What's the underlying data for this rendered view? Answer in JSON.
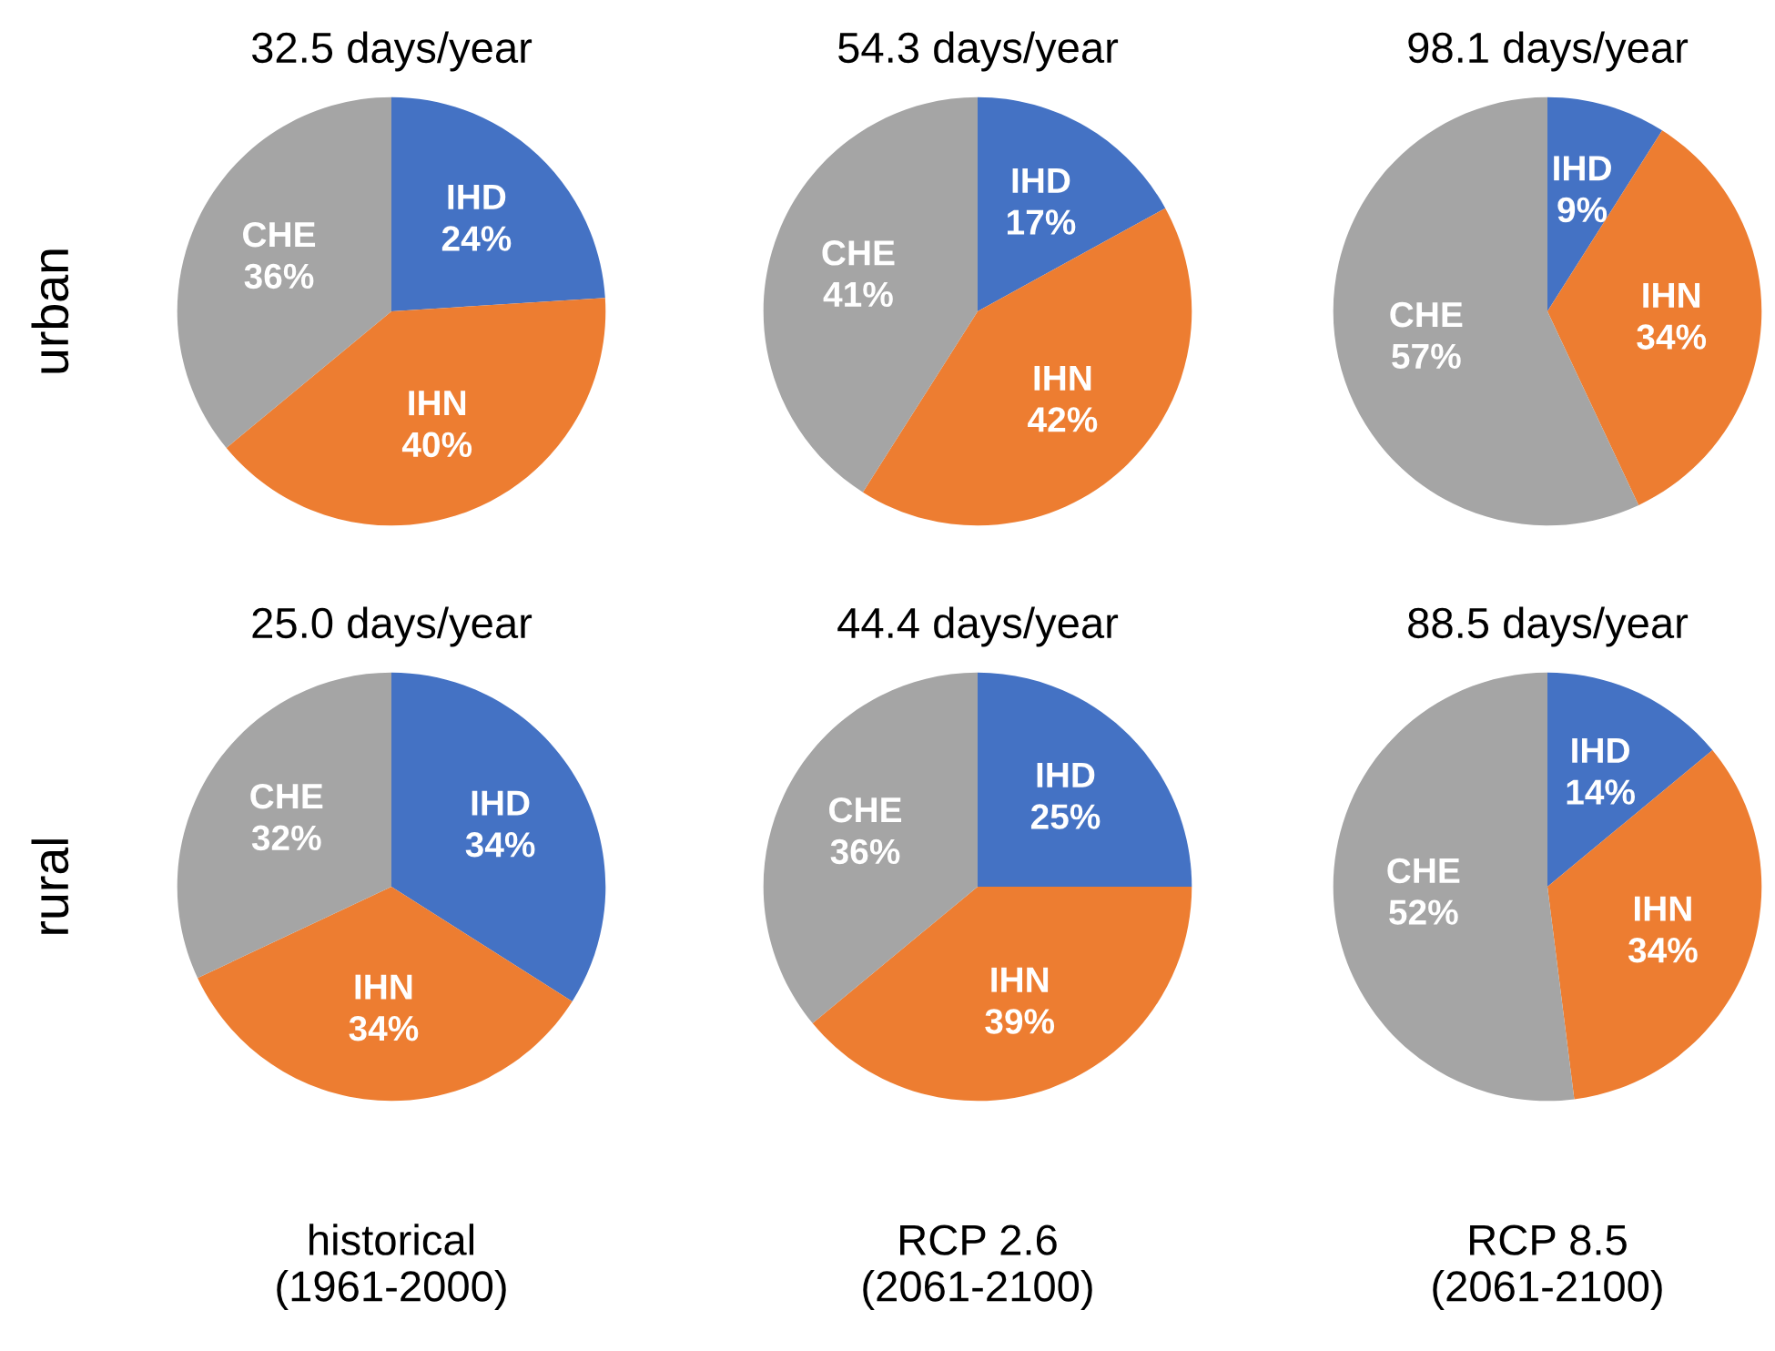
{
  "chart_data": [
    {
      "type": "pie",
      "title": "32.5 days/year",
      "ylabel": "urban",
      "categories": [
        "IHD",
        "IHN",
        "CHE"
      ],
      "values": [
        24,
        40,
        36
      ],
      "colors": [
        "#4472c4",
        "#ed7d31",
        "#a5a5a5"
      ],
      "value_labels": [
        "24%",
        "40%",
        "36%"
      ]
    },
    {
      "type": "pie",
      "title": "54.3 days/year",
      "categories": [
        "IHD",
        "IHN",
        "CHE"
      ],
      "values": [
        17,
        42,
        41
      ],
      "colors": [
        "#4472c4",
        "#ed7d31",
        "#a5a5a5"
      ],
      "value_labels": [
        "17%",
        "42%",
        "41%"
      ]
    },
    {
      "type": "pie",
      "title": "98.1 days/year",
      "categories": [
        "IHD",
        "IHN",
        "CHE"
      ],
      "values": [
        9,
        34,
        57
      ],
      "colors": [
        "#4472c4",
        "#ed7d31",
        "#a5a5a5"
      ],
      "value_labels": [
        "9%",
        "34%",
        "57%"
      ]
    },
    {
      "type": "pie",
      "title": "25.0 days/year",
      "ylabel": "rural",
      "xlabel": "historical\n(1961-2000)",
      "categories": [
        "IHD",
        "IHN",
        "CHE"
      ],
      "values": [
        34,
        34,
        32
      ],
      "colors": [
        "#4472c4",
        "#ed7d31",
        "#a5a5a5"
      ],
      "value_labels": [
        "34%",
        "34%",
        "32%"
      ]
    },
    {
      "type": "pie",
      "title": "44.4 days/year",
      "xlabel": "RCP 2.6\n(2061-2100)",
      "categories": [
        "IHD",
        "IHN",
        "CHE"
      ],
      "values": [
        25,
        39,
        36
      ],
      "colors": [
        "#4472c4",
        "#ed7d31",
        "#a5a5a5"
      ],
      "value_labels": [
        "25%",
        "39%",
        "36%"
      ]
    },
    {
      "type": "pie",
      "title": "88.5 days/year",
      "xlabel": "RCP 8.5\n(2061-2100)",
      "categories": [
        "IHD",
        "IHN",
        "CHE"
      ],
      "values": [
        14,
        34,
        52
      ],
      "colors": [
        "#4472c4",
        "#ed7d31",
        "#a5a5a5"
      ],
      "value_labels": [
        "14%",
        "34%",
        "52%"
      ]
    }
  ]
}
